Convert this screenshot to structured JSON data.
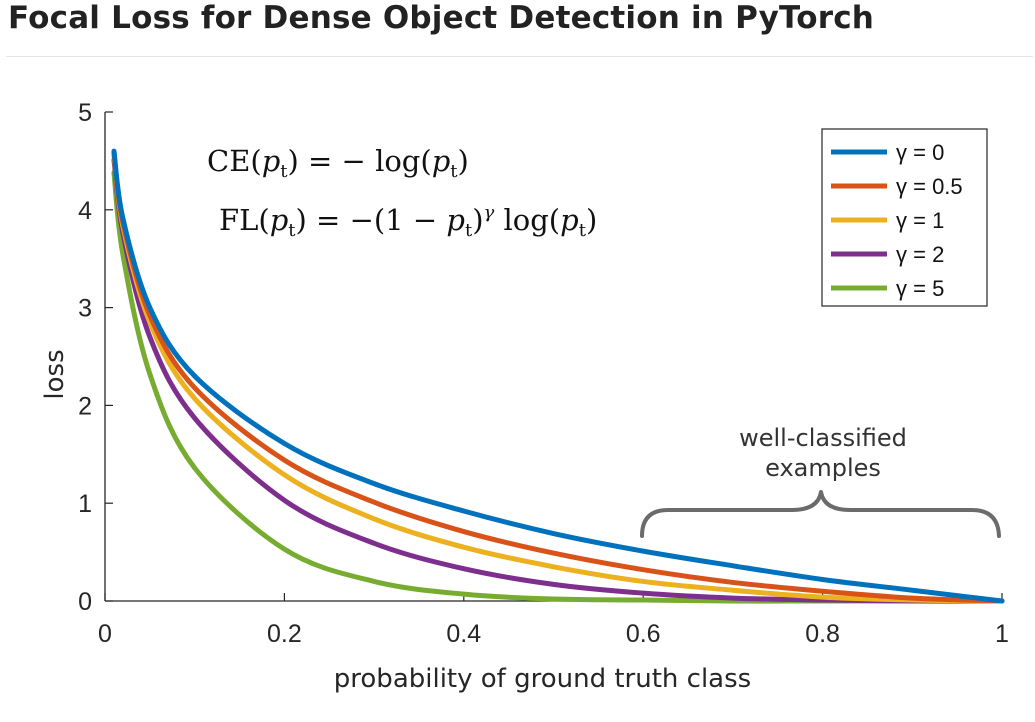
{
  "page": {
    "title": "Focal Loss for Dense Object Detection in PyTorch"
  },
  "chart_data": {
    "type": "line",
    "title": "",
    "xlabel": "probability of ground truth class",
    "ylabel": "loss",
    "xlim": [
      0,
      1
    ],
    "ylim": [
      0,
      5
    ],
    "x_ticks": [
      "0",
      "0.2",
      "0.4",
      "0.6",
      "0.8",
      "1"
    ],
    "y_ticks": [
      "0",
      "1",
      "2",
      "3",
      "4",
      "5"
    ],
    "grid": false,
    "legend_position": "top-right",
    "x": [
      0.01,
      0.02,
      0.05,
      0.1,
      0.2,
      0.3,
      0.4,
      0.5,
      0.6,
      0.7,
      0.8,
      0.9,
      1.0
    ],
    "series": [
      {
        "name": "γ = 0",
        "gamma": 0,
        "color": "#0072BD",
        "values": [
          4.6,
          3.91,
          3.0,
          2.3,
          1.61,
          1.2,
          0.92,
          0.69,
          0.51,
          0.36,
          0.22,
          0.11,
          0.0
        ]
      },
      {
        "name": "γ = 0.5",
        "gamma": 0.5,
        "color": "#D95319",
        "values": [
          4.58,
          3.87,
          2.92,
          2.18,
          1.44,
          1.01,
          0.71,
          0.49,
          0.32,
          0.19,
          0.1,
          0.03,
          0.0
        ]
      },
      {
        "name": "γ = 1",
        "gamma": 1,
        "color": "#EDB120",
        "values": [
          4.56,
          3.83,
          2.85,
          2.07,
          1.29,
          0.84,
          0.55,
          0.35,
          0.2,
          0.11,
          0.04,
          0.01,
          0.0
        ]
      },
      {
        "name": "γ = 2",
        "gamma": 2,
        "color": "#7E2F8E",
        "values": [
          4.51,
          3.76,
          2.7,
          1.87,
          1.03,
          0.59,
          0.33,
          0.17,
          0.08,
          0.03,
          0.01,
          0.0,
          0.0
        ]
      },
      {
        "name": "γ = 5",
        "gamma": 5,
        "color": "#77AC30",
        "values": [
          4.38,
          3.54,
          2.32,
          1.36,
          0.53,
          0.2,
          0.07,
          0.02,
          0.01,
          0.0,
          0.0,
          0.0,
          0.0
        ]
      }
    ],
    "formulas": {
      "ce_lhs": "CE(",
      "ce_p": "p",
      "ce_sub": "t",
      "ce_rhs": ") = − log(",
      "ce_p2": "p",
      "ce_sub2": "t",
      "ce_end": ")",
      "fl_lhs": "FL(",
      "fl_p": "p",
      "fl_sub": "t",
      "fl_mid": ") = −(1 − ",
      "fl_p2": "p",
      "fl_sub2": "t",
      "fl_close": ")",
      "fl_sup": "γ",
      "fl_log": " log(",
      "fl_p3": "p",
      "fl_sub3": "t",
      "fl_end": ")"
    },
    "annotation": {
      "line1": "well-classified",
      "line2": "examples"
    }
  }
}
